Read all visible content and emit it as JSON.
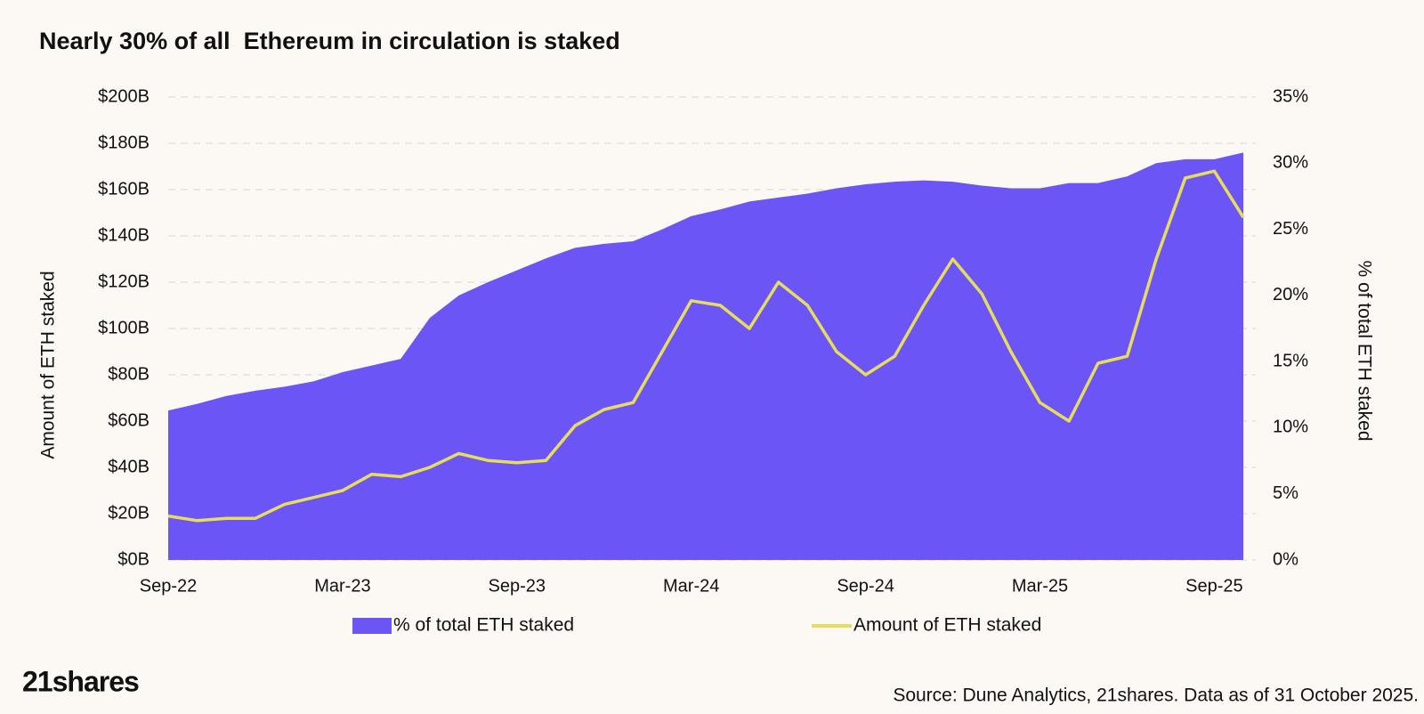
{
  "chart_data": {
    "type": "line",
    "title": "Nearly 30% of all  Ethereum in circulation is staked",
    "ylabel": "Amount of ETH staked",
    "y2label": "% of total ETH staked",
    "source": "Source: Dune Analytics, 21shares. Data as of 31 October 2025.",
    "brand": "21shares",
    "categories": [
      "Sep-22",
      null,
      null,
      null,
      null,
      null,
      "Mar-23",
      null,
      null,
      null,
      null,
      null,
      "Sep-23",
      null,
      null,
      null,
      null,
      null,
      "Mar-24",
      null,
      null,
      null,
      null,
      null,
      "Sep-24",
      null,
      null,
      null,
      null,
      null,
      "Mar-25",
      null,
      null,
      null,
      null,
      null,
      "Sep-25",
      null
    ],
    "series": [
      {
        "name": "% of total ETH staked",
        "type": "area",
        "axis": "y2",
        "color": "#6c55f5",
        "values": [
          11.3,
          11.8,
          12.4,
          12.8,
          13.1,
          13.5,
          14.2,
          14.7,
          15.2,
          18.3,
          20.0,
          21.0,
          21.9,
          22.8,
          23.6,
          23.9,
          24.1,
          25.0,
          26.0,
          26.5,
          27.1,
          27.4,
          27.7,
          28.1,
          28.4,
          28.6,
          28.7,
          28.6,
          28.3,
          28.1,
          28.1,
          28.5,
          28.5,
          29.0,
          30.0,
          30.3,
          30.3,
          30.8
        ]
      },
      {
        "name": "Amount of ETH staked",
        "type": "line",
        "axis": "y",
        "color": "#e6dd5c",
        "values": [
          19,
          17,
          18,
          18,
          24,
          27,
          30,
          37,
          36,
          40,
          46,
          43,
          42,
          43,
          58,
          65,
          68,
          90,
          112,
          110,
          100,
          120,
          110,
          90,
          80,
          88,
          110,
          130,
          115,
          90,
          68,
          60,
          85,
          88,
          130,
          165,
          168,
          148
        ]
      }
    ],
    "ylim": [
      0,
      200
    ],
    "yticks": [
      {
        "value": 0,
        "label": "$0B"
      },
      {
        "value": 20,
        "label": "$20B"
      },
      {
        "value": 40,
        "label": "$40B"
      },
      {
        "value": 60,
        "label": "$60B"
      },
      {
        "value": 80,
        "label": "$80B"
      },
      {
        "value": 100,
        "label": "$100B"
      },
      {
        "value": 120,
        "label": "$120B"
      },
      {
        "value": 140,
        "label": "$140B"
      },
      {
        "value": 160,
        "label": "$160B"
      },
      {
        "value": 180,
        "label": "$180B"
      },
      {
        "value": 200,
        "label": "$200B"
      }
    ],
    "y2lim": [
      0,
      35
    ],
    "y2ticks": [
      {
        "value": 0,
        "label": "0%"
      },
      {
        "value": 5,
        "label": "5%"
      },
      {
        "value": 10,
        "label": "10%"
      },
      {
        "value": 15,
        "label": "15%"
      },
      {
        "value": 20,
        "label": "20%"
      },
      {
        "value": 25,
        "label": "25%"
      },
      {
        "value": 30,
        "label": "30%"
      },
      {
        "value": 35,
        "label": "35%"
      }
    ],
    "grid": true,
    "legend": "bottom"
  }
}
